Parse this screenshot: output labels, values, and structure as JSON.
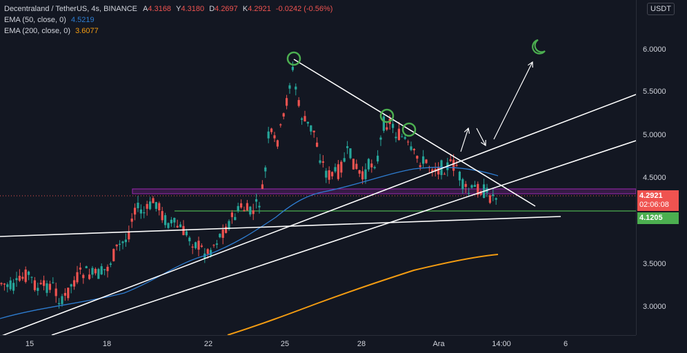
{
  "legend": {
    "symbol": "Decentraland / TetherUS, 4s, BINANCE",
    "open_label": "A",
    "open": "4.3168",
    "high_label": "Y",
    "high": "4.3180",
    "low_label": "D",
    "low": "4.2697",
    "close_label": "K",
    "close": "4.2921",
    "change": "-0.0242 (-0.56%)",
    "ema50_label": "EMA (50, close, 0)",
    "ema50_value": "4.5219",
    "ema200_label": "EMA (200, close, 0)",
    "ema200_value": "3.6077"
  },
  "currency": "USDT",
  "price_axis": {
    "ticks": [
      "6.0000",
      "5.5000",
      "5.0000",
      "4.5000",
      "3.5000",
      "3.0000"
    ],
    "current_price": "4.2921",
    "countdown": "02:06:08",
    "support_price": "4.1205"
  },
  "time_axis": {
    "ticks": [
      "15",
      "18",
      "22",
      "25",
      "28",
      "Ara",
      "14:00",
      "6"
    ]
  },
  "colors": {
    "background": "#131722",
    "up": "#26a69a",
    "down": "#ef5350",
    "ema50": "#2e7dd1",
    "ema200": "#f39c12",
    "support_line": "#4caf50",
    "resistance_zone": "#9c27b0",
    "drawing": "#ffffff",
    "circle": "#4caf50"
  },
  "chart_data": {
    "type": "candlestick",
    "ylim": [
      2.7,
      6.3
    ],
    "price_scale": "linear",
    "series": [
      {
        "name": "EMA (50, close, 0)",
        "current": 4.5219
      },
      {
        "name": "EMA (200, close, 0)",
        "current": 3.6077
      }
    ],
    "horizontal_levels": [
      4.1205,
      4.2921
    ],
    "resistance_zone": [
      4.36,
      4.31
    ],
    "icons": [
      "moon-icon"
    ]
  }
}
